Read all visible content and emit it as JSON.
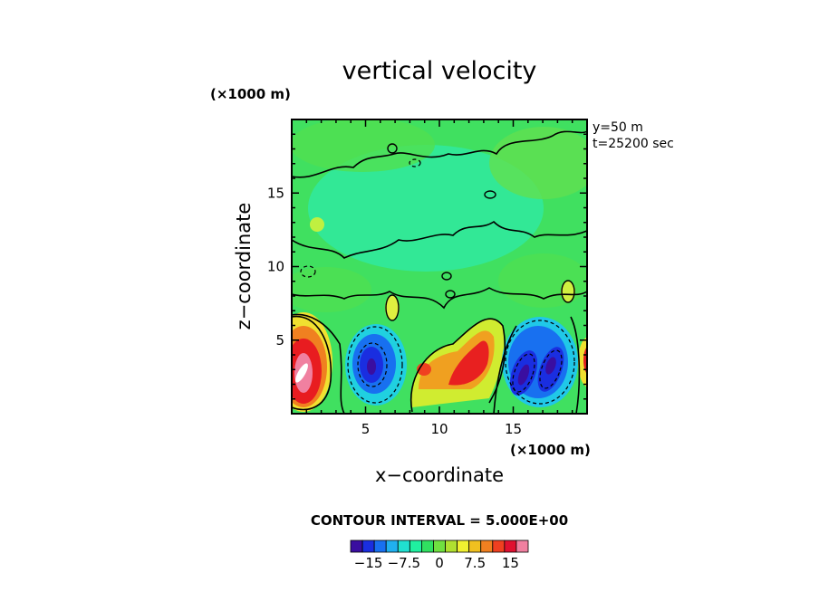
{
  "chart_data": {
    "type": "heatmap",
    "title": "vertical velocity",
    "xlabel": "x−coordinate",
    "ylabel": "z−coordinate",
    "x_unit": "(×1000 m)",
    "y_unit": "(×1000 m)",
    "xlim": [
      0,
      20
    ],
    "ylim": [
      0,
      20
    ],
    "x_ticks": [
      5,
      10,
      15
    ],
    "y_ticks": [
      5,
      10,
      15
    ],
    "x_tick_labels": [
      "5",
      "10",
      "15"
    ],
    "y_tick_labels": [
      "5",
      "10",
      "15"
    ],
    "annotations": [
      "y=50  m",
      "t=25200 sec"
    ],
    "contour_interval_label": "CONTOUR INTERVAL = 5.000E+00",
    "colorbar": {
      "tick_values": [
        -15,
        -7.5,
        0,
        7.5,
        15
      ],
      "tick_labels": [
        "−15",
        "−7.5",
        "0",
        "7.5",
        "15"
      ],
      "colors": [
        "#3a0ea0",
        "#1a2ee0",
        "#1870f0",
        "#20b0f0",
        "#20e0d0",
        "#20f0a0",
        "#30e060",
        "#70e040",
        "#b0e030",
        "#f0f030",
        "#f0c020",
        "#f08020",
        "#f04020",
        "#e01030",
        "#f080a0"
      ]
    },
    "features": [
      {
        "kind": "updraft",
        "x": 1.0,
        "z": 2.5,
        "peak": 20
      },
      {
        "kind": "downdraft",
        "x": 5.5,
        "z": 3.0,
        "peak": -18
      },
      {
        "kind": "updraft",
        "x": 11.5,
        "z": 3.0,
        "peak": 15
      },
      {
        "kind": "downdraft",
        "x": 16.0,
        "z": 3.0,
        "peak": -17
      },
      {
        "kind": "downdraft",
        "x": 17.5,
        "z": 3.5,
        "peak": -15
      },
      {
        "kind": "updraft",
        "x": 19.8,
        "z": 4.0,
        "peak": 14
      }
    ]
  }
}
